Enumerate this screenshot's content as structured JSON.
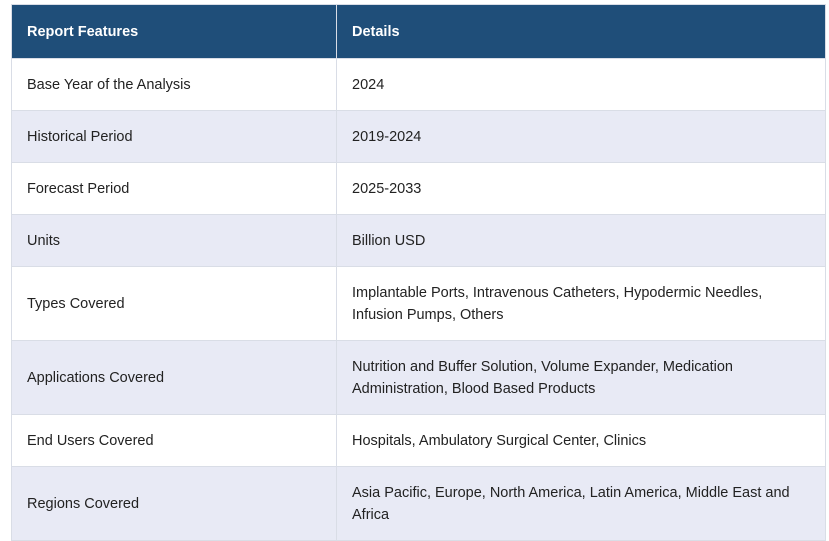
{
  "table": {
    "headers": [
      "Report Features",
      "Details"
    ],
    "rows": [
      {
        "feature": "Base Year of the Analysis",
        "details": "2024"
      },
      {
        "feature": "Historical Period",
        "details": "2019-2024"
      },
      {
        "feature": "Forecast Period",
        "details": "2025-2033"
      },
      {
        "feature": "Units",
        "details": "Billion USD"
      },
      {
        "feature": "Types Covered",
        "details": "Implantable Ports, Intravenous Catheters, Hypodermic Needles, Infusion Pumps, Others"
      },
      {
        "feature": "Applications Covered",
        "details": "Nutrition and Buffer Solution, Volume Expander, Medication Administration, Blood Based Products"
      },
      {
        "feature": "End Users Covered",
        "details": "Hospitals, Ambulatory Surgical Center, Clinics"
      },
      {
        "feature": "Regions Covered",
        "details": "Asia Pacific, Europe, North America, Latin America, Middle East and Africa"
      }
    ]
  },
  "colors": {
    "header_bg": "#1f4e79",
    "header_text": "#ffffff",
    "row_alt_bg": "#e8eaf5",
    "border": "#d9dde6"
  }
}
